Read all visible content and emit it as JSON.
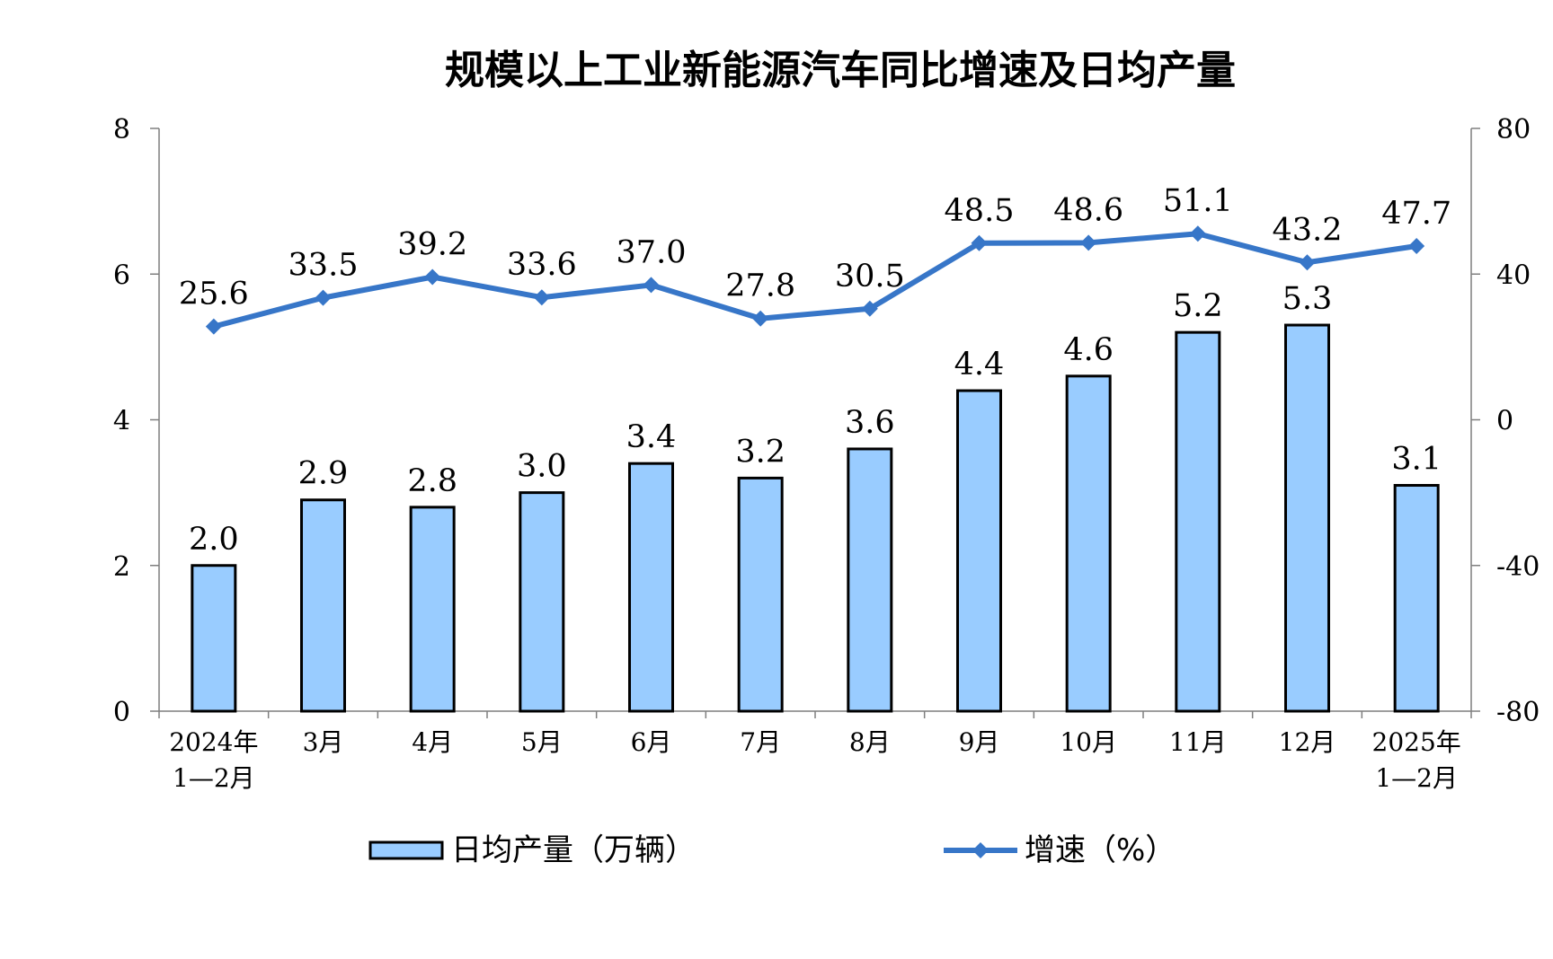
{
  "chart_data": {
    "type": "bar",
    "title": "规模以上工业新能源汽车同比增速及日均产量",
    "categories": [
      [
        "2024年",
        "1—2月"
      ],
      [
        "3月"
      ],
      [
        "4月"
      ],
      [
        "5月"
      ],
      [
        "6月"
      ],
      [
        "7月"
      ],
      [
        "8月"
      ],
      [
        "9月"
      ],
      [
        "10月"
      ],
      [
        "11月"
      ],
      [
        "12月"
      ],
      [
        "2025年",
        "1—2月"
      ]
    ],
    "left_axis": {
      "ylim": [
        0,
        8
      ],
      "ticks": [
        "0",
        "2",
        "4",
        "6",
        "8"
      ]
    },
    "right_axis": {
      "ylim": [
        -80,
        80
      ],
      "ticks": [
        "-80",
        "-40",
        "0",
        "40",
        "80"
      ]
    },
    "series": [
      {
        "name": "日均产量（万辆）",
        "type": "bar",
        "axis": "left",
        "color": "#99CCFF",
        "values": [
          2.0,
          2.9,
          2.8,
          3.0,
          3.4,
          3.2,
          3.6,
          4.4,
          4.6,
          5.2,
          5.3,
          3.1
        ],
        "labels": [
          "2.0",
          "2.9",
          "2.8",
          "3.0",
          "3.4",
          "3.2",
          "3.6",
          "4.4",
          "4.6",
          "5.2",
          "5.3",
          "3.1"
        ]
      },
      {
        "name": "增速（%）",
        "type": "line",
        "axis": "right",
        "color": "#3776C8",
        "marker": "diamond",
        "values": [
          25.6,
          33.5,
          39.2,
          33.6,
          37.0,
          27.8,
          30.5,
          48.5,
          48.6,
          51.1,
          43.2,
          47.7
        ],
        "labels": [
          "25.6",
          "33.5",
          "39.2",
          "33.6",
          "37.0",
          "27.8",
          "30.5",
          "48.5",
          "48.6",
          "51.1",
          "43.2",
          "47.7"
        ]
      }
    ],
    "grid": false,
    "legend_position": "bottom"
  }
}
